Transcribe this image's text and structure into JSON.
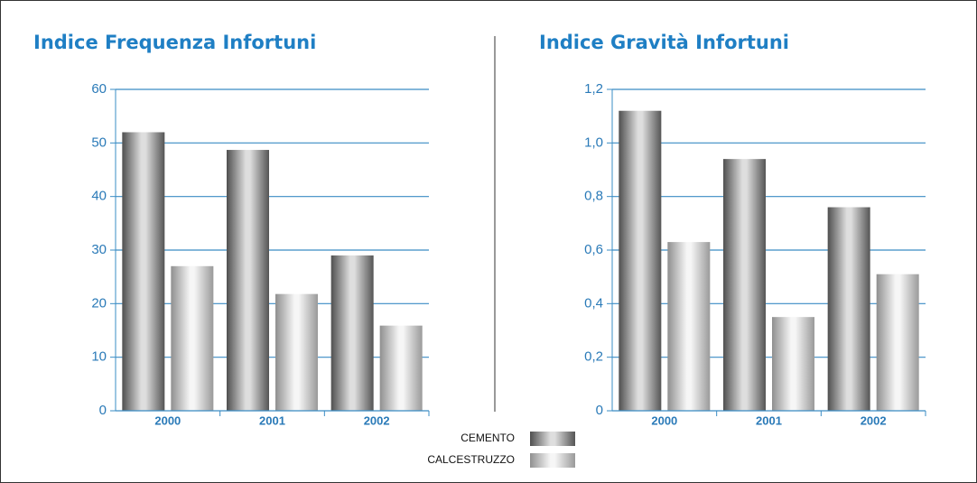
{
  "chart_data": [
    {
      "type": "bar",
      "title": "Indice Frequenza Infortuni",
      "categories": [
        "2000",
        "2001",
        "2002"
      ],
      "series": [
        {
          "name": "CEMENTO",
          "color": "#7a7a7a",
          "values": [
            52,
            48.7,
            29
          ]
        },
        {
          "name": "CALCESTRUZZO",
          "color": "#dcdcdc",
          "values": [
            27,
            21.8,
            15.9
          ]
        }
      ],
      "ylim": [
        0,
        60
      ],
      "yticks": [
        0,
        10,
        20,
        30,
        40,
        50,
        60
      ],
      "grid": true
    },
    {
      "type": "bar",
      "title": "Indice Gravità Infortuni",
      "categories": [
        "2000",
        "2001",
        "2002"
      ],
      "series": [
        {
          "name": "CEMENTO",
          "color": "#7a7a7a",
          "values": [
            1.12,
            0.94,
            0.76
          ]
        },
        {
          "name": "CALCESTRUZZO",
          "color": "#dcdcdc",
          "values": [
            0.63,
            0.35,
            0.51
          ]
        }
      ],
      "ylim": [
        0,
        1.2
      ],
      "yticks": [
        0,
        {
          "value": 0.2,
          "label": "0,2"
        },
        {
          "value": 0.4,
          "label": "0,4"
        },
        {
          "value": 0.6,
          "label": "0,6"
        },
        {
          "value": 0.8,
          "label": "0,8"
        },
        {
          "value": 1.0,
          "label": "1,0"
        },
        {
          "value": 1.2,
          "label": "1,2"
        }
      ],
      "grid": true
    }
  ]
}
